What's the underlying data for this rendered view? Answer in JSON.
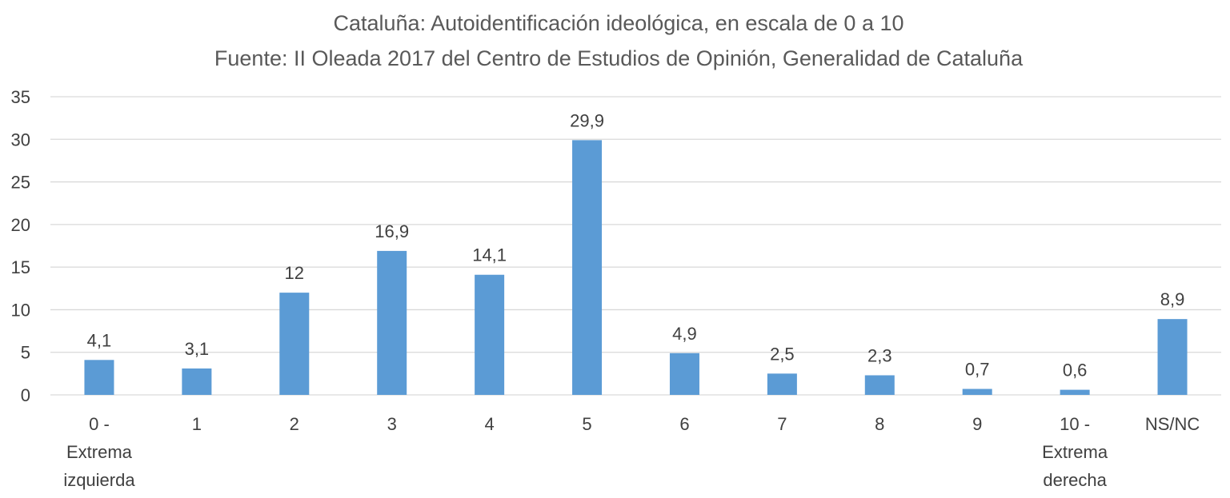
{
  "chart_data": {
    "type": "bar",
    "title": "Cataluña: Autoidentificación ideológica, en escala de 0 a 10",
    "subtitle": "Fuente: II Oleada 2017 del Centro de Estudios de Opinión, Generalidad de Cataluña",
    "categories": [
      [
        "0 -",
        "Extrema",
        "izquierda"
      ],
      [
        "1"
      ],
      [
        "2"
      ],
      [
        "3"
      ],
      [
        "4"
      ],
      [
        "5"
      ],
      [
        "6"
      ],
      [
        "7"
      ],
      [
        "8"
      ],
      [
        "9"
      ],
      [
        "10 -",
        "Extrema",
        "derecha"
      ],
      [
        "NS/NC"
      ]
    ],
    "values": [
      4.1,
      3.1,
      12,
      16.9,
      14.1,
      29.9,
      4.9,
      2.5,
      2.3,
      0.7,
      0.6,
      8.9
    ],
    "data_labels": [
      "4,1",
      "3,1",
      "12",
      "16,9",
      "14,1",
      "29,9",
      "4,9",
      "2,5",
      "2,3",
      "0,7",
      "0,6",
      "8,9"
    ],
    "yticks": [
      0,
      5,
      10,
      15,
      20,
      25,
      30,
      35
    ],
    "ylim": [
      0,
      35
    ],
    "grid": true,
    "legend": "none",
    "bar_color": "#5b9bd5"
  }
}
